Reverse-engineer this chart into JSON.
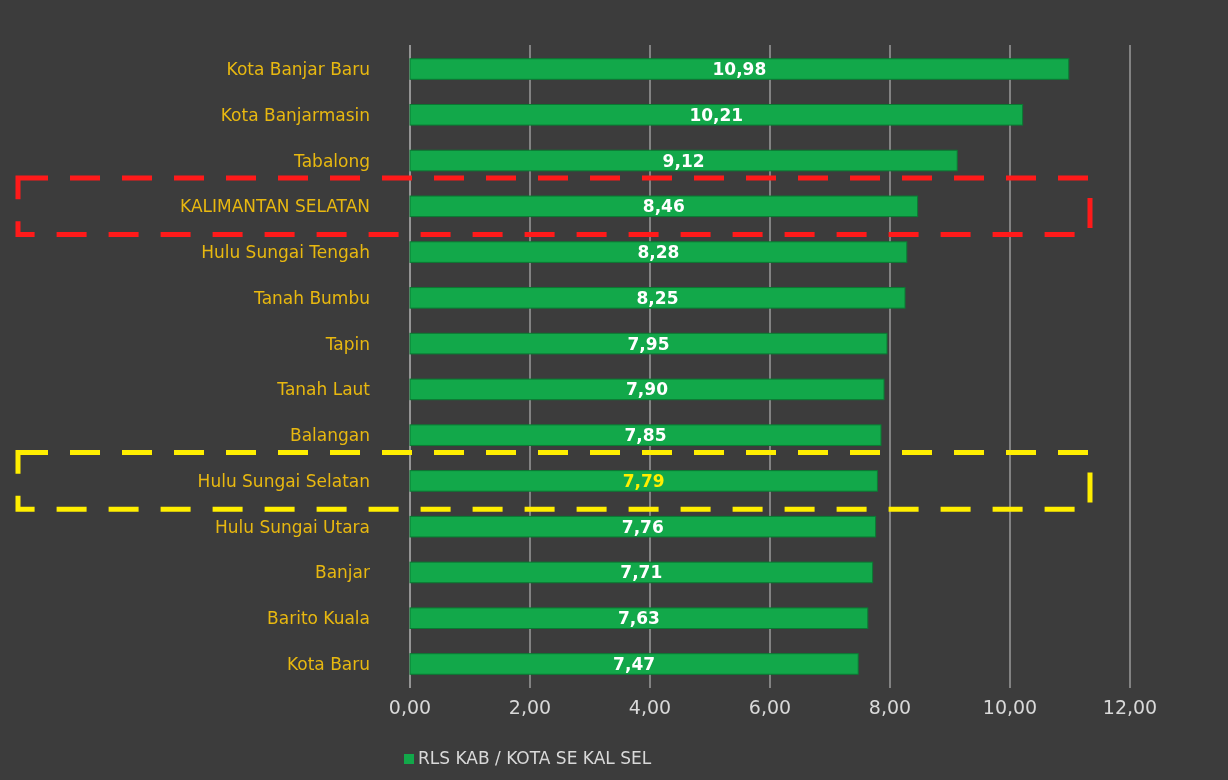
{
  "chart_data": {
    "type": "bar",
    "orientation": "horizontal",
    "categories": [
      "Kota Banjar Baru",
      "Kota Banjarmasin",
      "Tabalong",
      "KALIMANTAN SELATAN",
      "Hulu Sungai Tengah",
      "Tanah Bumbu",
      "Tapin",
      "Tanah Laut",
      "Balangan",
      "Hulu Sungai Selatan",
      "Hulu Sungai Utara",
      "Banjar",
      "Barito Kuala",
      "Kota Baru"
    ],
    "series": [
      {
        "name": "RLS KAB / KOTA SE KAL SEL",
        "color": "#12a84a",
        "values": [
          10.98,
          10.21,
          9.12,
          8.46,
          8.28,
          8.25,
          7.95,
          7.9,
          7.85,
          7.79,
          7.76,
          7.71,
          7.63,
          7.47
        ],
        "value_labels": [
          "10,98",
          "10,21",
          "9,12",
          "8,46",
          "8,28",
          "8,25",
          "7,95",
          "7,90",
          "7,85",
          "7,79",
          "7,76",
          "7,71",
          "7,63",
          "7,47"
        ]
      }
    ],
    "xlim": [
      0,
      12
    ],
    "xticks": [
      {
        "value": 0,
        "label": "0,00"
      },
      {
        "value": 2,
        "label": "2,00"
      },
      {
        "value": 4,
        "label": "4,00"
      },
      {
        "value": 6,
        "label": "6,00"
      },
      {
        "value": 8,
        "label": "8,00"
      },
      {
        "value": 10,
        "label": "10,00"
      },
      {
        "value": 12,
        "label": "12,00"
      }
    ],
    "grid": "x",
    "legend": "bottom"
  }
}
